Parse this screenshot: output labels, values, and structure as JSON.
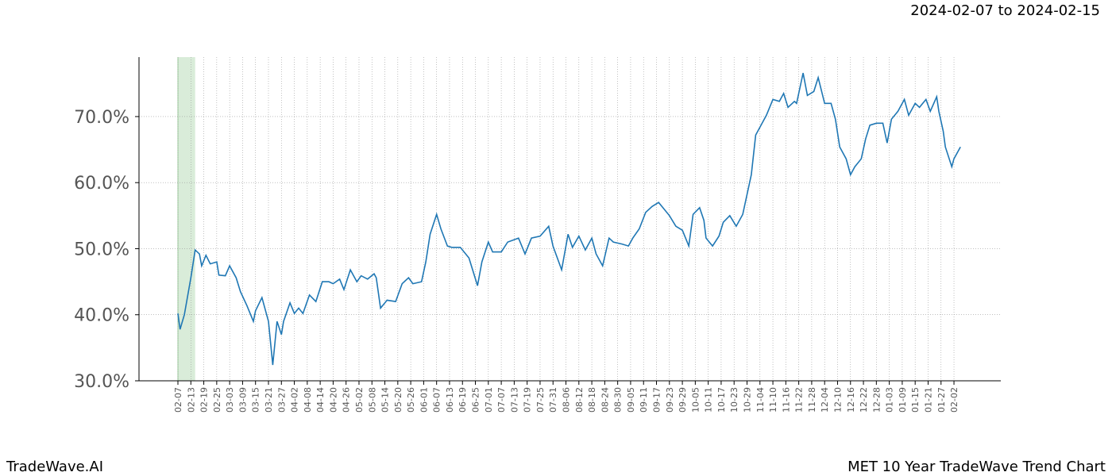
{
  "chart_data": {
    "type": "line",
    "date_range": "2024-02-07 to 2024-02-15",
    "brand": "TradeWave.AI",
    "title": "MET 10 Year TradeWave Trend Chart",
    "highlight_range": [
      "02-07",
      "02-15"
    ],
    "highlight_color": "#d9ecd9",
    "grid": true,
    "ylim": [
      30,
      79
    ],
    "yticks": [
      {
        "value": 30,
        "label": "30.0%"
      },
      {
        "value": 40,
        "label": "40.0%"
      },
      {
        "value": 50,
        "label": "50.0%"
      },
      {
        "value": 60,
        "label": "60.0%"
      },
      {
        "value": 70,
        "label": "70.0%"
      }
    ],
    "xticks": [
      "02-07",
      "02-13",
      "02-19",
      "02-25",
      "03-03",
      "03-09",
      "03-15",
      "03-21",
      "03-27",
      "04-02",
      "04-08",
      "04-14",
      "04-20",
      "04-26",
      "05-02",
      "05-08",
      "05-14",
      "05-20",
      "05-26",
      "06-01",
      "06-07",
      "06-13",
      "06-19",
      "06-25",
      "07-01",
      "07-07",
      "07-13",
      "07-19",
      "07-25",
      "07-31",
      "08-06",
      "08-12",
      "08-18",
      "08-24",
      "08-30",
      "09-05",
      "09-11",
      "09-17",
      "09-23",
      "09-29",
      "10-05",
      "10-11",
      "10-17",
      "10-23",
      "10-29",
      "11-04",
      "11-10",
      "11-16",
      "11-22",
      "11-28",
      "12-04",
      "12-10",
      "12-16",
      "12-22",
      "12-28",
      "01-03",
      "01-09",
      "01-15",
      "01-21",
      "01-27",
      "02-02"
    ],
    "x": [
      "02-07",
      "02-08",
      "02-10",
      "02-13",
      "02-15",
      "02-17",
      "02-18",
      "02-20",
      "02-22",
      "02-25",
      "02-26",
      "03-01",
      "03-03",
      "03-06",
      "03-08",
      "03-11",
      "03-14",
      "03-15",
      "03-18",
      "03-21",
      "03-23",
      "03-25",
      "03-27",
      "03-28",
      "03-31",
      "04-02",
      "04-04",
      "04-06",
      "04-09",
      "04-12",
      "04-15",
      "04-18",
      "04-20",
      "04-23",
      "04-25",
      "04-28",
      "05-01",
      "05-03",
      "05-06",
      "05-09",
      "05-10",
      "05-12",
      "05-15",
      "05-19",
      "05-22",
      "05-25",
      "05-27",
      "05-31",
      "06-02",
      "06-04",
      "06-07",
      "06-09",
      "06-12",
      "06-14",
      "06-18",
      "06-22",
      "06-26",
      "06-28",
      "07-01",
      "07-03",
      "07-07",
      "07-10",
      "07-15",
      "07-18",
      "07-21",
      "07-25",
      "07-29",
      "07-31",
      "08-04",
      "08-07",
      "08-09",
      "08-12",
      "08-15",
      "08-18",
      "08-20",
      "08-23",
      "08-26",
      "08-28",
      "09-01",
      "09-04",
      "09-06",
      "09-09",
      "09-12",
      "09-15",
      "09-18",
      "09-20",
      "09-23",
      "09-26",
      "09-29",
      "10-02",
      "10-04",
      "10-07",
      "10-09",
      "10-10",
      "10-13",
      "10-16",
      "10-18",
      "10-21",
      "10-24",
      "10-27",
      "10-28",
      "10-31",
      "11-02",
      "11-04",
      "11-07",
      "11-10",
      "11-13",
      "11-15",
      "11-17",
      "11-20",
      "11-21",
      "11-24",
      "11-26",
      "11-29",
      "12-01",
      "12-04",
      "12-07",
      "12-09",
      "12-11",
      "12-14",
      "12-16",
      "12-18",
      "12-21",
      "12-23",
      "12-25",
      "12-28",
      "12-31",
      "01-02",
      "01-04",
      "01-07",
      "01-10",
      "01-12",
      "01-15",
      "01-17",
      "01-20",
      "01-22",
      "01-25",
      "01-26",
      "01-28",
      "01-29",
      "02-01",
      "02-02",
      "02-05"
    ],
    "series": [
      {
        "color": "#1f77b4",
        "values": [
          40.2,
          37.8,
          40,
          45.6,
          49.8,
          49.2,
          47.4,
          49,
          47.7,
          48,
          46,
          45.9,
          47.4,
          45.6,
          43.5,
          41.4,
          39,
          40.6,
          42.6,
          39,
          32.4,
          39,
          37,
          39,
          41.8,
          40.2,
          41,
          40.2,
          43,
          42,
          45,
          45,
          44.7,
          45.4,
          43.8,
          46.8,
          45,
          45.9,
          45.4,
          46.2,
          45.6,
          41,
          42.2,
          42,
          44.7,
          45.6,
          44.7,
          45,
          48,
          52.2,
          55.2,
          53,
          50.4,
          50.2,
          50.2,
          48.6,
          44.4,
          48,
          51,
          49.5,
          49.5,
          51,
          51.6,
          49.2,
          51.6,
          51.9,
          53.4,
          50.4,
          46.8,
          52.2,
          50.2,
          51.9,
          49.8,
          51.6,
          49.2,
          47.4,
          51.6,
          51,
          50.7,
          50.4,
          51.6,
          53,
          55.5,
          56.4,
          57,
          56.2,
          55,
          53.4,
          52.8,
          50.4,
          55.2,
          56.2,
          54.3,
          51.6,
          50.4,
          51.9,
          54,
          55,
          53.4,
          55.2,
          56.7,
          61.2,
          67.2,
          68.4,
          70.2,
          72.6,
          72.3,
          73.5,
          71.4,
          72.3,
          72,
          76.6,
          73.2,
          73.8,
          75.9,
          72,
          72,
          69.6,
          65.4,
          63.6,
          61.2,
          62.4,
          63.6,
          66.6,
          68.7,
          69,
          69,
          66,
          69.6,
          70.8,
          72.6,
          70.2,
          72,
          71.4,
          72.6,
          70.8,
          73,
          70.8,
          67.8,
          65.4,
          62.4,
          63.6,
          65.4
        ]
      }
    ]
  }
}
